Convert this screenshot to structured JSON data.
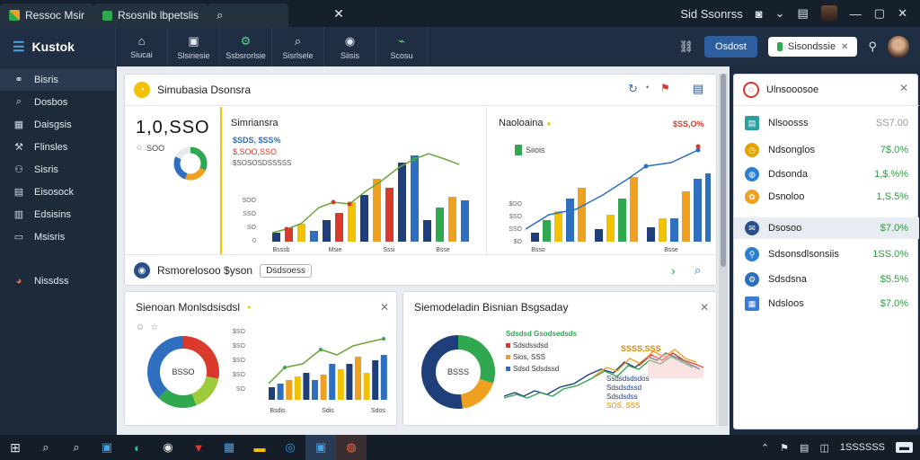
{
  "titlebar": {
    "tabs": [
      {
        "label": "Ressoc Msir"
      },
      {
        "label": "Rsosnib lbpetslis"
      }
    ],
    "right_label": "Sid Ssonrss"
  },
  "header": {
    "brand": "Kustok",
    "nav": [
      {
        "label": "Siucai",
        "icon": "home-icon"
      },
      {
        "label": "Slsiriesie",
        "icon": "folder-icon"
      },
      {
        "label": "Ssbsrorlsie",
        "icon": "settings-icon"
      },
      {
        "label": "Sisrlsele",
        "icon": "search-icon"
      },
      {
        "label": "Siisis",
        "icon": "user-icon"
      },
      {
        "label": "Scosu",
        "icon": "chart-icon"
      }
    ],
    "primary_button": "Osdost",
    "status_pill": "Sisondssie"
  },
  "sidebar": {
    "items": [
      {
        "label": "Bisris"
      },
      {
        "label": "Dosbos"
      },
      {
        "label": "Daisgsis"
      },
      {
        "label": "Flinsles"
      },
      {
        "label": "Sisris"
      },
      {
        "label": "Eisosock"
      },
      {
        "label": "Edsisins"
      },
      {
        "label": "Msisris"
      },
      {
        "label": "Nissdss"
      }
    ]
  },
  "overview": {
    "title": "Simubasia Dsonsra",
    "kpi_value": "1,0,SSO",
    "kpi_sub": "SOO",
    "chart1": {
      "title": "Simriansra",
      "legend": [
        "$SDS, $SS%",
        "$,SOO,SSO",
        "$SOSOSDSSSSS"
      ],
      "ticks": [
        "SOO",
        "SSO",
        "SO",
        "0"
      ],
      "xlabels": [
        "Bsssb",
        "Msie",
        "Sssi",
        "Bsse"
      ]
    },
    "chart2": {
      "title": "Naoloaina",
      "legend": [
        "Siiois"
      ],
      "annotation": "$SS,O%",
      "ticks": [
        "$OO",
        "$SO",
        "SSO",
        "$O"
      ],
      "xlabels": [
        "Bsso",
        "Bsse"
      ]
    },
    "search_row": {
      "label": "Rsmorelosoo $yson",
      "chip": "Dsdsoess"
    }
  },
  "card3": {
    "title": "Sienoan Monlsdsisdsl",
    "donut_center": "BSSO",
    "ticks": [
      "$SO",
      "$SO",
      "$SO",
      "$SO",
      "SO"
    ],
    "xlabels": [
      "Bsdis",
      "Sdis",
      "Sdos"
    ]
  },
  "card4": {
    "title": "Siemodeladin Bisnian Bsgsaday",
    "donut_center": "BSSS",
    "legend": [
      "Sdsdsd Gsodsedsds",
      "Sdsdssdsd",
      "Sios, SSS",
      "Sdsd Sdsdssd"
    ],
    "peak_label": "SSSS,SSS",
    "annotations": [
      "Ssdsdsdsdos",
      "Sdsdsdssd",
      "Sdsdsdss",
      "SOS, SSS"
    ]
  },
  "rpanel": {
    "title": "Ulnsooosoe",
    "rows": [
      {
        "label": "Nlsoosss",
        "value": "SS7.00",
        "icon": "list-icon",
        "color": "#2aa0a0",
        "valcolor": "#999999"
      },
      {
        "label": "Ndsonglos",
        "value": "7$.0%",
        "icon": "clock-icon",
        "color": "#e6a400",
        "valcolor": "#2d9b3f"
      },
      {
        "label": "Ddsonda",
        "value": "1,$.%%",
        "icon": "globe-icon",
        "color": "#2a7fd0",
        "valcolor": "#2d9b3f"
      },
      {
        "label": "Dsnoloo",
        "value": "1,S.5%",
        "icon": "gift-icon",
        "color": "#f0a020",
        "valcolor": "#2d9b3f"
      },
      {
        "label": "Dsosoo",
        "value": "$7.0%",
        "icon": "mail-icon",
        "color": "#2a4e8a",
        "valcolor": "#2d9b3f"
      },
      {
        "label": "Sdsonsdlsonsiis",
        "value": "1SS.0%",
        "icon": "location-icon",
        "color": "#2a7fd0",
        "valcolor": "#2d9b3f"
      },
      {
        "label": "Sdsdsna",
        "value": "$5.5%",
        "icon": "gear-icon",
        "color": "#2a6fc0",
        "valcolor": "#2d9b3f"
      },
      {
        "label": "Ndsloos",
        "value": "$7.0%",
        "icon": "calendar-icon",
        "color": "#3b7bd4",
        "valcolor": "#2d9b3f"
      }
    ]
  },
  "taskbar": {
    "clock": "1SSSSSS"
  },
  "colors": {
    "blue": "#2f6fbf",
    "navy": "#1e3f7a",
    "green": "#2fa84f",
    "orange": "#f0a020",
    "red": "#d93a2b",
    "yellow": "#f2c200",
    "lightgreen": "#9ccc3a"
  }
}
